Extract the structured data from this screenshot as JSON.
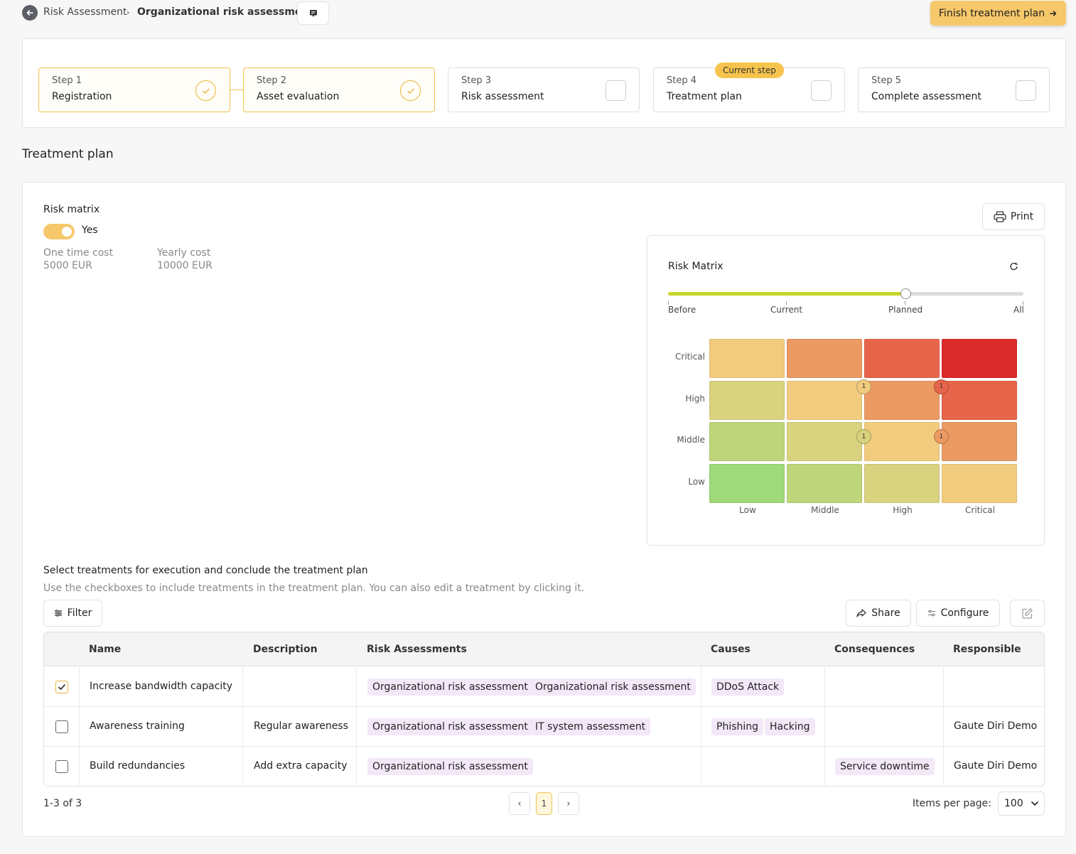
{
  "breadcrumb": {
    "parent": "Risk Assessment",
    "current": "Organizational risk assessment"
  },
  "header": {
    "finish_label": "Finish treatment plan"
  },
  "stepper": {
    "current_badge": "Current step",
    "steps": [
      {
        "num": "Step 1",
        "label": "Registration",
        "status": "done"
      },
      {
        "num": "Step 2",
        "label": "Asset evaluation",
        "status": "done"
      },
      {
        "num": "Step 3",
        "label": "Risk assessment",
        "status": "todo"
      },
      {
        "num": "Step 4",
        "label": "Treatment plan",
        "status": "current"
      },
      {
        "num": "Step 5",
        "label": "Complete assessment",
        "status": "todo"
      }
    ]
  },
  "section_title": "Treatment plan",
  "risk_matrix_toggle": {
    "label": "Risk matrix",
    "value": "Yes",
    "on": true
  },
  "costs": {
    "one_time_label": "One time cost",
    "one_time_value": "5000 EUR",
    "yearly_label": "Yearly cost",
    "yearly_value": "10000 EUR"
  },
  "print_label": "Print",
  "matrix": {
    "title": "Risk Matrix",
    "slider": {
      "labels": [
        "Before",
        "Current",
        "Planned",
        "All"
      ],
      "selected": "Planned",
      "position": 0.667
    },
    "row_labels": [
      "Critical",
      "High",
      "Middle",
      "Low"
    ],
    "col_labels": [
      "Low",
      "Middle",
      "High",
      "Critical"
    ],
    "colors": [
      [
        "#f2cc7e",
        "#eb9a62",
        "#e6654a",
        "#dc2b2b"
      ],
      [
        "#d9d27e",
        "#f2cc7e",
        "#eb9a62",
        "#e6654a"
      ],
      [
        "#bfd57a",
        "#d9d27e",
        "#f2cc7e",
        "#eb9a62"
      ],
      [
        "#9fd97a",
        "#bfd57a",
        "#d9d27e",
        "#f2cc7e"
      ]
    ],
    "markers": [
      {
        "row": "High",
        "col": "Middle",
        "count": "1",
        "color": "#f2cc7e"
      },
      {
        "row": "High",
        "col": "High",
        "count": "1",
        "color": "#e6654a"
      },
      {
        "row": "Middle",
        "col": "Middle",
        "count": "1",
        "color": "#d9d27e"
      },
      {
        "row": "Middle",
        "col": "High",
        "count": "1",
        "color": "#eb9a62"
      }
    ]
  },
  "treatments": {
    "title": "Select treatments for execution and conclude the treatment plan",
    "subtitle": "Use the checkboxes to include treatments in the treatment plan. You can also edit a treatment by clicking it.",
    "filter_label": "Filter",
    "share_label": "Share",
    "configure_label": "Configure",
    "columns": [
      "Name",
      "Description",
      "Risk Assessments",
      "Causes",
      "Consequences",
      "Responsible"
    ],
    "rows": [
      {
        "checked": true,
        "name": "Increase bandwidth capacity",
        "description": "",
        "risk_assessments": [
          "Organizational risk assessment",
          "Organizational risk assessment"
        ],
        "causes": [
          "DDoS Attack"
        ],
        "consequences": [],
        "responsible": ""
      },
      {
        "checked": false,
        "name": "Awareness training",
        "description": "Regular awareness",
        "risk_assessments": [
          "Organizational risk assessment",
          "IT system assessment"
        ],
        "causes": [
          "Phishing",
          "Hacking"
        ],
        "consequences": [],
        "responsible": "Gaute Diri Demo"
      },
      {
        "checked": false,
        "name": "Build redundancies",
        "description": "Add extra capacity",
        "risk_assessments": [
          "Organizational risk assessment"
        ],
        "causes": [],
        "consequences": [
          "Service downtime"
        ],
        "responsible": "Gaute Diri Demo"
      }
    ],
    "range_text": "1-3 of 3",
    "current_page": "1",
    "items_per_page_label": "Items per page:",
    "items_per_page": "100"
  },
  "accent_color": "#f6c86a"
}
